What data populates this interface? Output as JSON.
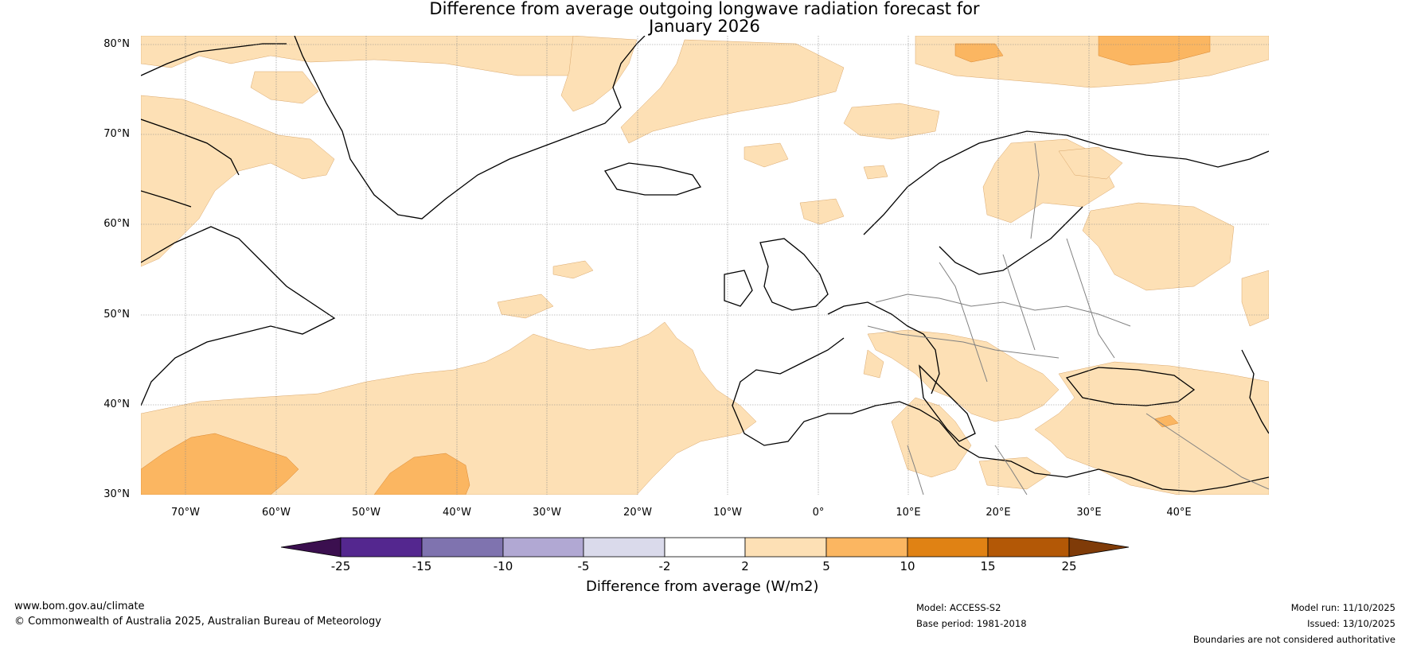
{
  "title": {
    "line1": "Difference from average outgoing longwave radiation forecast for",
    "line2": "January 2026"
  },
  "axes": {
    "latitudes": [
      "80°N",
      "70°N",
      "60°N",
      "50°N",
      "40°N",
      "30°N"
    ],
    "longitudes": [
      "70°W",
      "60°W",
      "50°W",
      "40°W",
      "30°W",
      "20°W",
      "10°W",
      "0°",
      "10°E",
      "20°E",
      "30°E",
      "40°E"
    ]
  },
  "colorbar": {
    "title": "Difference from average (W/m2)",
    "ticks": [
      "-25",
      "-15",
      "-10",
      "-5",
      "-2",
      "2",
      "5",
      "10",
      "15",
      "25"
    ],
    "colors": [
      "#3b0f4f",
      "#54278f",
      "#7f73af",
      "#b1a8d3",
      "#dadaeb",
      "#ffffff",
      "#fde0b5",
      "#fbb661",
      "#e08214",
      "#b35806",
      "#7f3b08"
    ]
  },
  "footer": {
    "website": "www.bom.gov.au/climate",
    "copyright": "© Commonwealth of Australia 2025, Australian Bureau of Meteorology",
    "model": "Model: ACCESS-S2",
    "base_period": "Base period: 1981-2018",
    "model_run": "Model run: 11/10/2025",
    "issued": "Issued: 13/10/2025",
    "disclaimer": "Boundaries are not considered authoritative"
  }
}
